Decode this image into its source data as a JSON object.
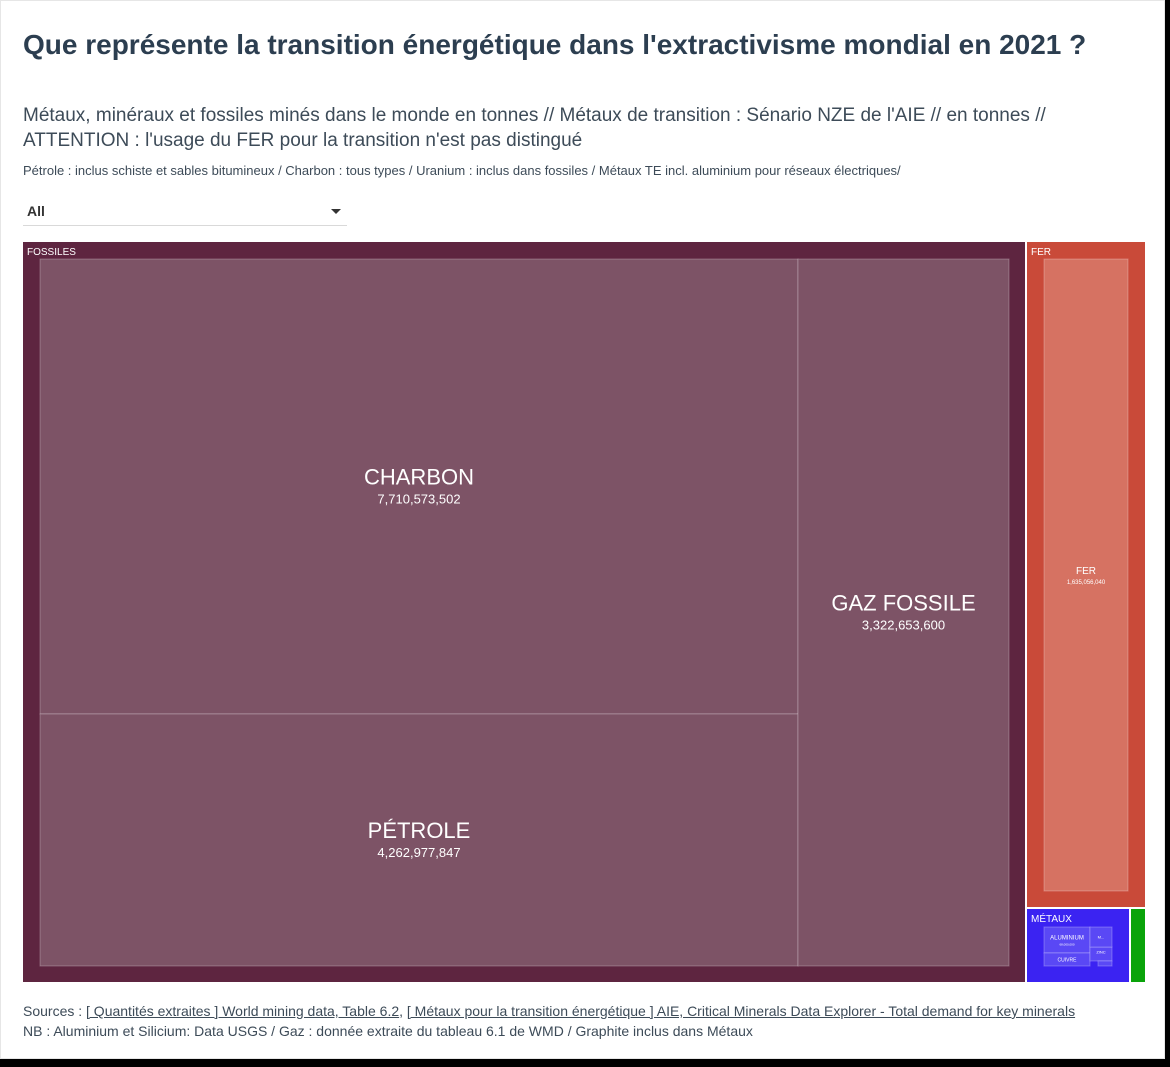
{
  "title": "Que représente la transition énergétique dans l'extractivisme mondial en 2021 ?",
  "subtitle": "Métaux, minéraux et fossiles minés dans le monde en tonnes // Métaux de transition : Sénario NZE de l'AIE // en tonnes // ATTENTION : l'usage du FER pour la transition n'est pas distingué",
  "note": "Pétrole : inclus schiste et sables bitumineux / Charbon : tous types / Uranium : inclus dans fossiles / Métaux TE incl. aluminium pour réseaux électriques/",
  "filter": {
    "value": "All"
  },
  "chart_data": {
    "type": "treemap",
    "groups": [
      {
        "name": "FOSSILES",
        "color": "#5e2540",
        "tile_color": "#7d5366",
        "items": [
          {
            "name": "CHARBON",
            "label": "7,710,573,502",
            "value": 7710573502
          },
          {
            "name": "PÉTROLE",
            "label": "4,262,977,847",
            "value": 4262977847
          },
          {
            "name": "GAZ FOSSILE",
            "label": "3,322,653,600",
            "value": 3322653600
          }
        ]
      },
      {
        "name": "FER",
        "color": "#c94a39",
        "tile_color": "#d67262",
        "items": [
          {
            "name": "FER",
            "label": "1,635,056,040",
            "value": 1635056040
          }
        ]
      },
      {
        "name": "MÉTAUX",
        "color": "#3b23f2",
        "tile_color": "#5a48f5",
        "items": [
          {
            "name": "ALUMINIUM",
            "label": "68,000,000",
            "value": 68000000
          },
          {
            "name": "CUIVRE",
            "label": "",
            "value": 21000000
          },
          {
            "name": "ZINC",
            "label": "",
            "value": 13000000
          },
          {
            "name": "M...",
            "label": "",
            "value": 9000000
          },
          {
            "name": "",
            "label": "",
            "value": 4000000
          }
        ]
      },
      {
        "name": "",
        "color": "#0aa30a",
        "tile_color": "#0aa30a",
        "items": [
          {
            "name": "",
            "label": "",
            "value": 80000000
          }
        ]
      }
    ]
  },
  "sources": {
    "prefix": "Sources : ",
    "link1": "[ Quantités extraites ] World mining data, Table 6.2",
    "sep": ", ",
    "link2": "[ Métaux pour la transition énergétique ] AIE, Critical Minerals Data Explorer - Total demand for key minerals",
    "nb": "NB : Aluminium et Silicium: Data USGS / Gaz : donnée extraite du tableau 6.1 de WMD / Graphite inclus dans Métaux"
  }
}
